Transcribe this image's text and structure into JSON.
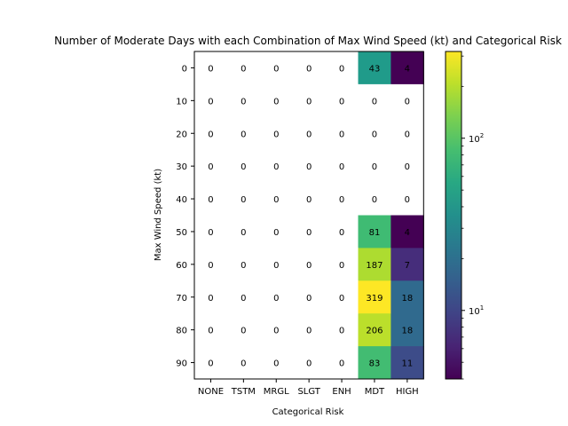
{
  "chart_data": {
    "type": "heatmap",
    "title": "Number of Moderate Days with each Combination of Max Wind Speed (kt) and Categorical Risk",
    "xlabel": "Categorical Risk",
    "ylabel": "Max Wind Speed (kt)",
    "x_categories": [
      "NONE",
      "TSTM",
      "MRGL",
      "SLGT",
      "ENH",
      "MDT",
      "HIGH"
    ],
    "y_categories": [
      "0",
      "10",
      "20",
      "30",
      "40",
      "50",
      "60",
      "70",
      "80",
      "90"
    ],
    "values": [
      [
        0,
        0,
        0,
        0,
        0,
        43,
        4
      ],
      [
        0,
        0,
        0,
        0,
        0,
        0,
        0
      ],
      [
        0,
        0,
        0,
        0,
        0,
        0,
        0
      ],
      [
        0,
        0,
        0,
        0,
        0,
        0,
        0
      ],
      [
        0,
        0,
        0,
        0,
        0,
        0,
        0
      ],
      [
        0,
        0,
        0,
        0,
        0,
        81,
        4
      ],
      [
        0,
        0,
        0,
        0,
        0,
        187,
        7
      ],
      [
        0,
        0,
        0,
        0,
        0,
        319,
        18
      ],
      [
        0,
        0,
        0,
        0,
        0,
        206,
        18
      ],
      [
        0,
        0,
        0,
        0,
        0,
        83,
        11
      ]
    ],
    "colorbar": {
      "scale": "log",
      "colormap": "viridis",
      "range": [
        4,
        319
      ],
      "tick_labels": [
        "10^1",
        "10^2"
      ],
      "tick_values": [
        10,
        100
      ]
    },
    "zero_cells_color": "#ffffff"
  }
}
